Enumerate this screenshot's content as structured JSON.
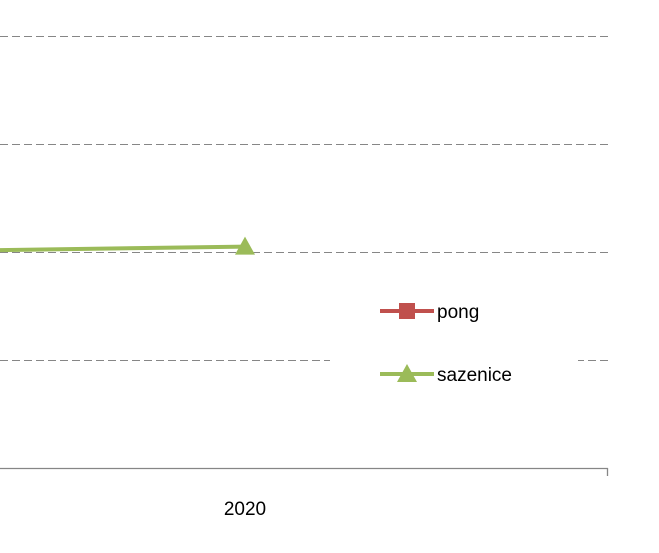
{
  "chart_data": {
    "type": "line",
    "categories": [
      "2020"
    ],
    "series": [
      {
        "name": "pong",
        "color": "#c0504d",
        "marker": "square",
        "values": [
          null
        ]
      },
      {
        "name": "sazenice",
        "color": "#9bbb59",
        "marker": "triangle",
        "values": [
          2.05
        ]
      }
    ],
    "ylim": [
      0,
      4
    ],
    "grid": "dashed horizontal",
    "legend": "right"
  }
}
